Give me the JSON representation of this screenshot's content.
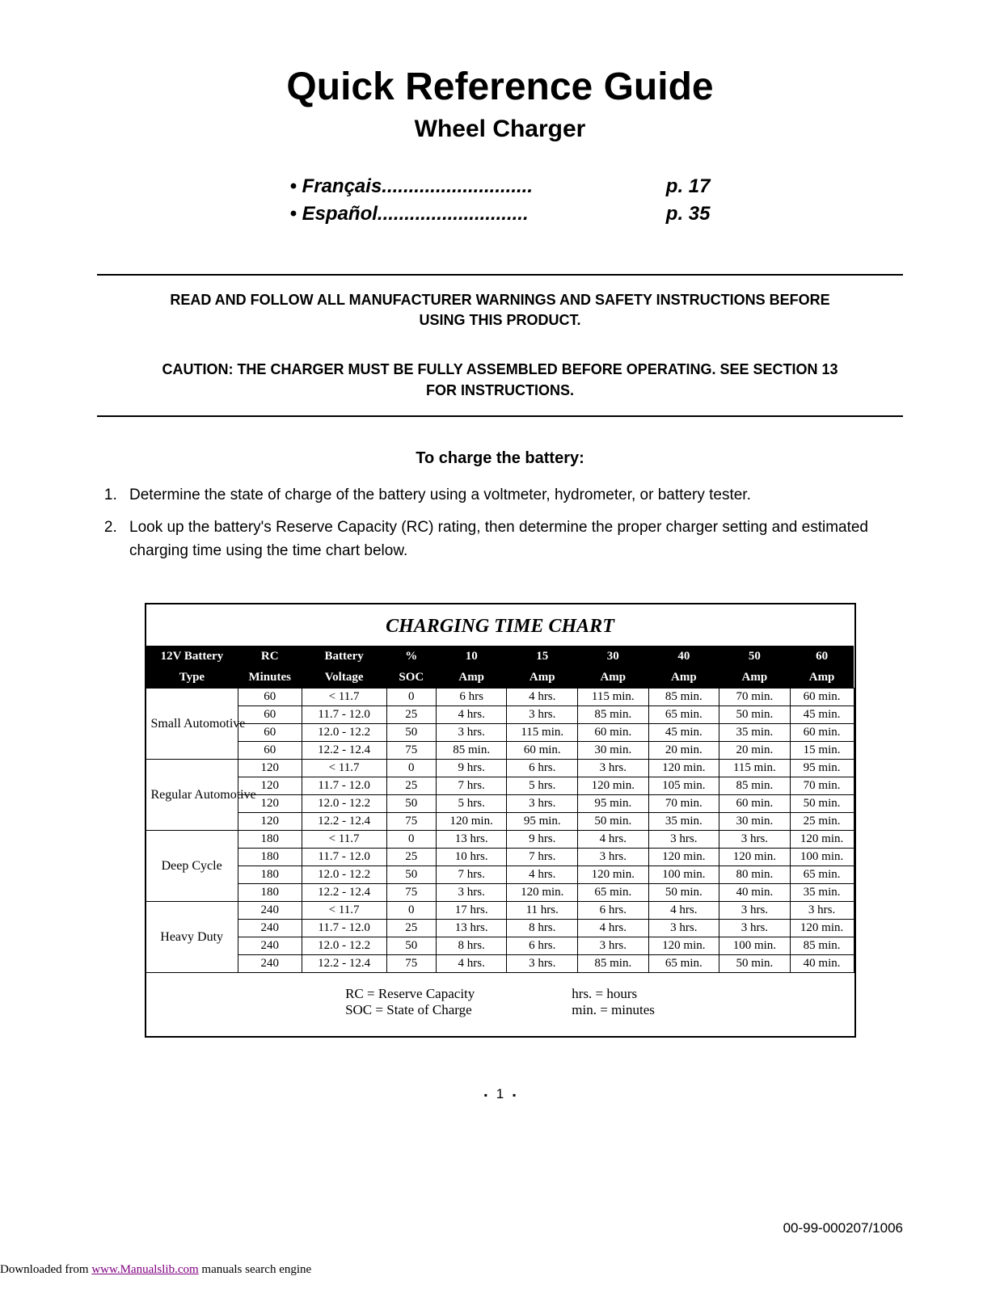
{
  "title": "Quick Reference Guide",
  "subtitle": "Wheel Charger",
  "languages": [
    {
      "label": "• Français",
      "page": "p. 17"
    },
    {
      "label": "• Español",
      "page": "p. 35"
    }
  ],
  "dots": "............................",
  "warning1": "READ AND FOLLOW ALL MANUFACTURER WARNINGS AND SAFETY INSTRUCTIONS BEFORE USING THIS PRODUCT.",
  "warning2": "CAUTION: THE CHARGER MUST BE FULLY ASSEMBLED BEFORE OPERATING. SEE SECTION 13 FOR INSTRUCTIONS.",
  "section_head": "To charge the battery:",
  "steps": [
    "Determine the state of charge of the battery using a voltmeter, hydrometer, or battery tester.",
    "Look up the battery's Reserve Capacity (RC) rating, then determine the proper charger setting and estimated charging time using the time chart below."
  ],
  "chart": {
    "title": "CHARGING TIME CHART",
    "head1": [
      "12V Battery",
      "RC",
      "Battery",
      "%",
      "10",
      "15",
      "30",
      "40",
      "50",
      "60"
    ],
    "head2": [
      "Type",
      "Minutes",
      "Voltage",
      "SOC",
      "Amp",
      "Amp",
      "Amp",
      "Amp",
      "Amp",
      "Amp"
    ],
    "col_widths": [
      "13%",
      "9%",
      "12%",
      "7%",
      "10%",
      "10%",
      "10%",
      "10%",
      "10%",
      "9%"
    ],
    "groups": [
      {
        "type": "Small Automotive",
        "rows": [
          [
            "60",
            "< 11.7",
            "0",
            "6 hrs",
            "4 hrs.",
            "115 min.",
            "85 min.",
            "70 min.",
            "60 min."
          ],
          [
            "60",
            "11.7 - 12.0",
            "25",
            "4 hrs.",
            "3 hrs.",
            "85 min.",
            "65 min.",
            "50 min.",
            "45 min."
          ],
          [
            "60",
            "12.0 - 12.2",
            "50",
            "3 hrs.",
            "115 min.",
            "60 min.",
            "45 min.",
            "35 min.",
            "60 min."
          ],
          [
            "60",
            "12.2 - 12.4",
            "75",
            "85 min.",
            "60 min.",
            "30 min.",
            "20 min.",
            "20 min.",
            "15 min."
          ]
        ]
      },
      {
        "type": "Regular Automotive",
        "rows": [
          [
            "120",
            "< 11.7",
            "0",
            "9 hrs.",
            "6 hrs.",
            "3 hrs.",
            "120 min.",
            "115 min.",
            "95 min."
          ],
          [
            "120",
            "11.7 - 12.0",
            "25",
            "7 hrs.",
            "5 hrs.",
            "120 min.",
            "105 min.",
            "85 min.",
            "70 min."
          ],
          [
            "120",
            "12.0 - 12.2",
            "50",
            "5 hrs.",
            "3 hrs.",
            "95 min.",
            "70 min.",
            "60 min.",
            "50 min."
          ],
          [
            "120",
            "12.2 - 12.4",
            "75",
            "120 min.",
            "95 min.",
            "50 min.",
            "35 min.",
            "30 min.",
            "25 min."
          ]
        ]
      },
      {
        "type": "Deep Cycle",
        "rows": [
          [
            "180",
            "< 11.7",
            "0",
            "13 hrs.",
            "9 hrs.",
            "4 hrs.",
            "3 hrs.",
            "3 hrs.",
            "120 min."
          ],
          [
            "180",
            "11.7 - 12.0",
            "25",
            "10 hrs.",
            "7 hrs.",
            "3 hrs.",
            "120 min.",
            "120 min.",
            "100 min."
          ],
          [
            "180",
            "12.0 - 12.2",
            "50",
            "7 hrs.",
            "4 hrs.",
            "120 min.",
            "100 min.",
            "80 min.",
            "65 min."
          ],
          [
            "180",
            "12.2 - 12.4",
            "75",
            "3 hrs.",
            "120 min.",
            "65 min.",
            "50 min.",
            "40 min.",
            "35 min."
          ]
        ]
      },
      {
        "type": "Heavy Duty",
        "rows": [
          [
            "240",
            "< 11.7",
            "0",
            "17 hrs.",
            "11 hrs.",
            "6 hrs.",
            "4 hrs.",
            "3 hrs.",
            "3 hrs."
          ],
          [
            "240",
            "11.7 - 12.0",
            "25",
            "13 hrs.",
            "8 hrs.",
            "4 hrs.",
            "3 hrs.",
            "3 hrs.",
            "120 min."
          ],
          [
            "240",
            "12.0 - 12.2",
            "50",
            "8 hrs.",
            "6 hrs.",
            "3 hrs.",
            "120 min.",
            "100 min.",
            "85 min."
          ],
          [
            "240",
            "12.2 - 12.4",
            "75",
            "4 hrs.",
            "3 hrs.",
            "85 min.",
            "65 min.",
            "50 min.",
            "40 min."
          ]
        ]
      }
    ],
    "legend": {
      "left": [
        "RC = Reserve Capacity",
        "SOC = State  of Charge"
      ],
      "right": [
        "hrs. = hours",
        "min. = minutes"
      ]
    }
  },
  "page_number": "1",
  "doc_code": "00-99-000207/1006",
  "dl_prefix": "Downloaded from ",
  "dl_link_text": "www.Manualslib.com",
  "dl_suffix": "  manuals search engine"
}
